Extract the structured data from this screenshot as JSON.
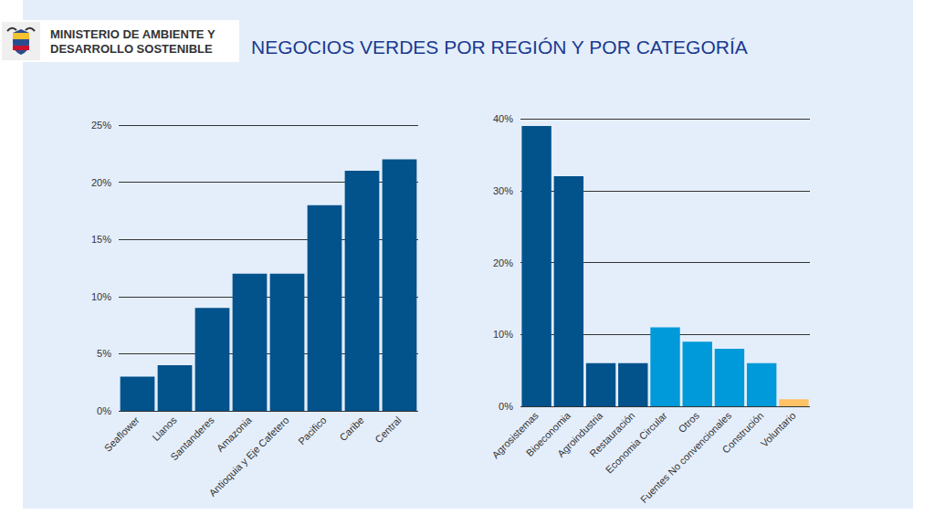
{
  "header": {
    "organization": [
      "MINISTERIO DE AMBIENTE Y",
      "DESARROLLO SOSTENIBLE"
    ],
    "title": "NEGOCIOS VERDES POR REGIÓN Y POR CATEGORÍA"
  },
  "chart_data": [
    {
      "type": "bar",
      "categories": [
        "Seaflower",
        "Llanos",
        "Santanderes",
        "Amazonia",
        "Antioquia y Eje Cafetero",
        "Pacifico",
        "Caribe",
        "Central"
      ],
      "values": [
        3,
        4,
        9,
        12,
        12,
        18,
        21,
        22
      ],
      "color": "#02528c",
      "ylim": [
        0,
        25
      ],
      "yticks": [
        {
          "value": 0,
          "label": "0%"
        },
        {
          "value": 5,
          "label": "5%"
        },
        {
          "value": 10,
          "label": "10%"
        },
        {
          "value": 15,
          "label": "15%"
        },
        {
          "value": 20,
          "label": "20%"
        },
        {
          "value": 25,
          "label": "25%"
        }
      ],
      "grid": true
    },
    {
      "type": "bar",
      "categories": [
        "Agrosistemas",
        "Bioeconomia",
        "Agroindustria",
        "Restauración",
        "Economia Circular",
        "Otros",
        "Fuentes No convencionales",
        "Construción",
        "Voluntario"
      ],
      "values": [
        39,
        32,
        6,
        6,
        11,
        9,
        8,
        6,
        1
      ],
      "colors": [
        "#02528c",
        "#02528c",
        "#02528c",
        "#02528c",
        "#0099d9",
        "#0099d9",
        "#0099d9",
        "#0099d9",
        "#ffc266"
      ],
      "ylim": [
        0,
        40
      ],
      "yticks": [
        {
          "value": 0,
          "label": "0%"
        },
        {
          "value": 10,
          "label": "10%"
        },
        {
          "value": 20,
          "label": "20%"
        },
        {
          "value": 30,
          "label": "30%"
        },
        {
          "value": 40,
          "label": "40%"
        }
      ],
      "grid": true
    }
  ]
}
